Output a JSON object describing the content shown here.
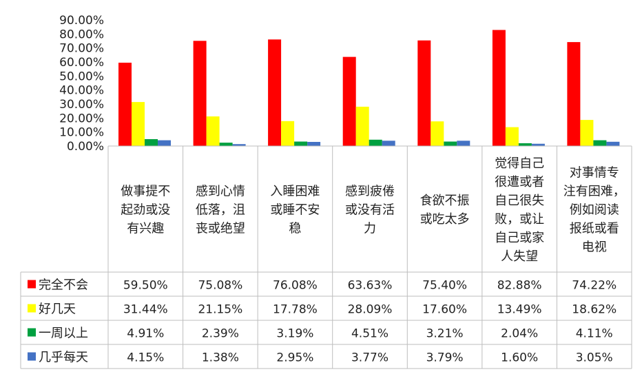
{
  "chart_data": {
    "type": "bar",
    "title": "",
    "xlabel": "",
    "ylabel": "",
    "ylim": [
      0,
      90
    ],
    "yticks": [
      "0.00%",
      "10.00%",
      "20.00%",
      "30.00%",
      "40.00%",
      "50.00%",
      "60.00%",
      "70.00%",
      "80.00%",
      "90.00%"
    ],
    "grid": false,
    "legend": "data-table-left",
    "categories": [
      [
        "做事提不",
        "起劲或没",
        "有兴趣"
      ],
      [
        "感到心情",
        "低落，沮",
        "丧或绝望"
      ],
      [
        "入睡困难",
        "或睡不安",
        "稳"
      ],
      [
        "感到疲倦",
        "或没有活",
        "力"
      ],
      [
        "食欲不振",
        "或吃太多"
      ],
      [
        "觉得自己",
        "很遭或者",
        "自己很失",
        "败，或让",
        "自己或家",
        "人失望"
      ],
      [
        "对事情专",
        "注有困难，",
        "例如阅读",
        "报纸或看",
        "电视"
      ]
    ],
    "series": [
      {
        "name": "完全不会",
        "color": "#ff0000",
        "values": [
          59.5,
          75.08,
          76.08,
          63.63,
          75.4,
          82.88,
          74.22
        ],
        "labels": [
          "59.50%",
          "75.08%",
          "76.08%",
          "63.63%",
          "75.40%",
          "82.88%",
          "74.22%"
        ]
      },
      {
        "name": "好几天",
        "color": "#ffff00",
        "values": [
          31.44,
          21.15,
          17.78,
          28.09,
          17.6,
          13.49,
          18.62
        ],
        "labels": [
          "31.44%",
          "21.15%",
          "17.78%",
          "28.09%",
          "17.60%",
          "13.49%",
          "18.62%"
        ]
      },
      {
        "name": "一周以上",
        "color": "#00a040",
        "values": [
          4.91,
          2.39,
          3.19,
          4.51,
          3.21,
          2.04,
          4.11
        ],
        "labels": [
          "4.91%",
          "2.39%",
          "3.19%",
          "4.51%",
          "3.21%",
          "2.04%",
          "4.11%"
        ]
      },
      {
        "name": "几乎每天",
        "color": "#4472c4",
        "values": [
          4.15,
          1.38,
          2.95,
          3.77,
          3.79,
          1.6,
          3.05
        ],
        "labels": [
          "4.15%",
          "1.38%",
          "2.95%",
          "3.77%",
          "3.79%",
          "1.60%",
          "3.05%"
        ]
      }
    ]
  }
}
